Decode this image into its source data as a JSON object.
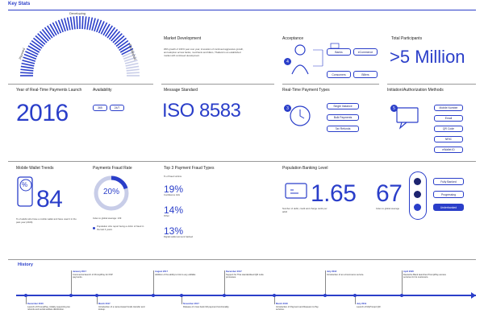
{
  "title": "Key Stats",
  "gauge": {
    "label_left": "Planned",
    "label_top": "Developing",
    "label_right": "Established",
    "level": 0.85
  },
  "market": {
    "title": "Market Development",
    "text": "With growth of 104% year over year, innovation of continued aggressive growth, and adoption across banks, merchants and billers, Thailand is an established market with continued development."
  },
  "acceptance": {
    "title": "Acceptance",
    "pills": [
      "Banks",
      "eCommerce",
      "Consumers",
      "Billers"
    ],
    "step": "4"
  },
  "participants": {
    "title": "Total Participants",
    "value": ">5 Million"
  },
  "year": {
    "title": "Year of Real-Time Payments Launch",
    "value": "2016"
  },
  "availability": {
    "title": "Availability",
    "pills": [
      "365",
      "24/7"
    ]
  },
  "message": {
    "title": "Message Standard",
    "value": "ISO 8583"
  },
  "rt_types": {
    "title": "Real-Time Payment Types",
    "pills": [
      "Single Instance",
      "Bulk Payments",
      "Tax Refunds"
    ],
    "step": "3"
  },
  "initiation": {
    "title": "Initiation/Authorization Methods",
    "pills": [
      "Mobile Number",
      "Email",
      "QR Code",
      "NRIC",
      "eWallet ID"
    ],
    "step": "5"
  },
  "wallet": {
    "title": "Mobile Wallet Trends",
    "value": "84",
    "icon_text": "%",
    "text": "% of adults who have a mobile wallet and have used it in the past year (2020)."
  },
  "fraud_rate": {
    "title": "Payments Fraud Rate",
    "value": "20%",
    "level": 0.2,
    "index_text": "Index to global average: 139",
    "legend": "Population who report being a victim of fraud in the last 4 years"
  },
  "fraud_types": {
    "title": "Top 3 Payment Fraud Types",
    "sub": "% of fraud victims",
    "items": [
      {
        "value": "19%",
        "label": "Confidence trick"
      },
      {
        "value": "14%",
        "label": "Other"
      },
      {
        "value": "13%",
        "label": "Digital wallet account hacked"
      }
    ]
  },
  "banking": {
    "title": "Population Banking Level",
    "value": "1.65",
    "index": "67",
    "left_text": "Number of debit, credit and charge cards per adult",
    "index_text": "Index to global average",
    "levels": [
      "Fully Banked",
      "Progressing",
      "Underbanked"
    ],
    "active": "Underbanked"
  },
  "history": {
    "title": "History",
    "top": [
      {
        "date": "January 2017",
        "text": "Commercial launch of PromptPay for P2P payments."
      },
      {
        "date": "August 2017",
        "text": "Addition of the ability to link to any eWallet."
      },
      {
        "date": "December 2017",
        "text": "Support for Thai standardised QR code processes."
      },
      {
        "date": "July 2018",
        "text": "Introduction of an eCommerce service."
      },
      {
        "date": "April 2020",
        "text": "Deutsche Bank launches PromptPay access services for its customers."
      }
    ],
    "bottom": [
      {
        "date": "December 2016",
        "text": "Launch of PromptPay, initially supporting tax refunds and social welfare distribution."
      },
      {
        "date": "March 2017",
        "text": "Introduction of a name-based funds transfer and lookup."
      },
      {
        "date": "November 2017",
        "text": "Release of cross bank bill payment functionality."
      },
      {
        "date": "March 2018",
        "text": "Introduction of Payment and Request to Pay services."
      },
      {
        "date": "July 2019",
        "text": "Launch of MyPrompt QR."
      }
    ]
  },
  "colors": {
    "accent": "#2a3ec9",
    "dark": "#1d2470"
  }
}
